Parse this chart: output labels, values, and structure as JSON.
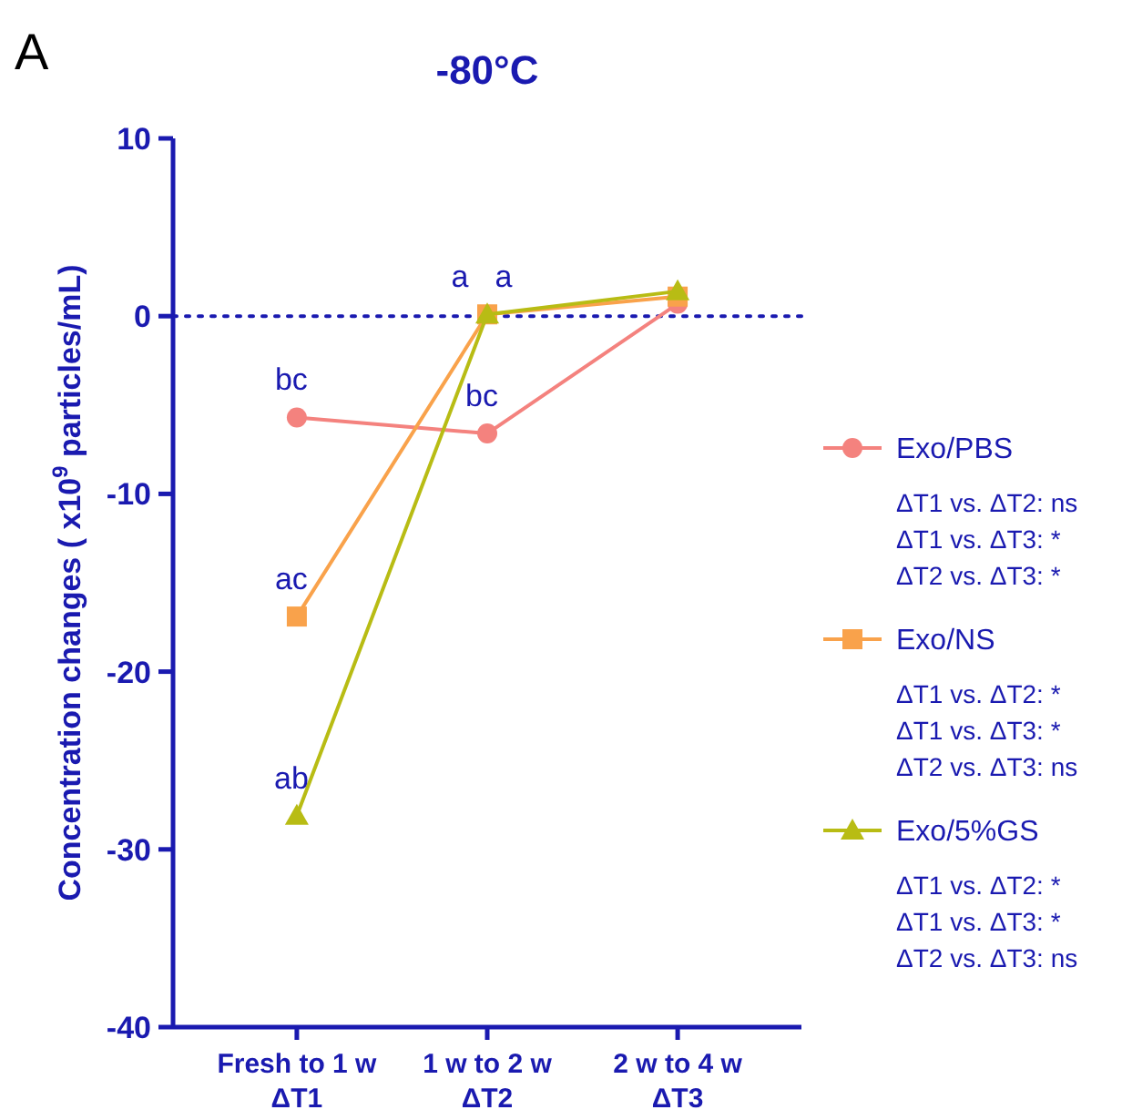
{
  "chart_data": {
    "type": "line",
    "title": "-80°C",
    "ylabel": "Concentration changes ( x10$^{9}$ particles/mL)",
    "categories": [
      "Fresh to 1 w\nΔT1",
      "1 w to 2 w\nΔT2",
      "2 w to 4 w\nΔT3"
    ],
    "series": [
      {
        "name": "Exo/PBS",
        "color": "#f4827e",
        "marker": "circle",
        "values": [
          -5.7,
          -6.6,
          0.7
        ]
      },
      {
        "name": "Exo/NS",
        "color": "#f9a24b",
        "marker": "square",
        "values": [
          -16.9,
          0.1,
          1.1
        ]
      },
      {
        "name": "Exo/5%GS",
        "color": "#b8bc14",
        "marker": "triangle",
        "values": [
          -28.1,
          0.1,
          1.4
        ]
      }
    ],
    "ylim": [
      -40,
      10
    ],
    "yticks": [
      -40,
      -30,
      -20,
      -10,
      0,
      10
    ],
    "grid": false,
    "legend": "right",
    "ref_lines": [
      {
        "axis": "y",
        "value": 0,
        "color": "#1a1ab0",
        "line_style": "dotted"
      }
    ],
    "annotations": [
      "A",
      "ΔT1 vs. ΔT2: ns",
      "ΔT1 vs. ΔT3: *",
      "ΔT2 vs. ΔT3: *",
      "ΔT1 vs. ΔT2: *",
      "ΔT1 vs. ΔT3: *",
      "ΔT2 vs. ΔT3: ns",
      "ΔT1 vs. ΔT2: *",
      "ΔT1 vs. ΔT3: *",
      "ΔT2 vs. ΔT3: ns",
      {
        "text": "bc",
        "x": "Fresh to 1 w\nΔT1",
        "y": -5.7
      },
      {
        "text": "bc",
        "x": "1 w to 2 w\nΔT2",
        "y": -6.6
      },
      {
        "text": "ac",
        "x": "Fresh to 1 w\nΔT1",
        "y": -16.9
      },
      {
        "text": "a",
        "x": "1 w to 2 w\nΔT2",
        "y": 0.1
      },
      {
        "text": "ab",
        "x": "Fresh to 1 w\nΔT1",
        "y": -28.1
      },
      {
        "text": "a",
        "x": "1 w to 2 w\nΔT2",
        "y": 0.1
      }
    ]
  }
}
